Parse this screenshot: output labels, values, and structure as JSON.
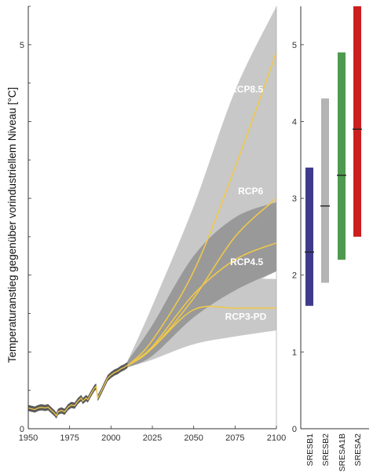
{
  "chart_data": {
    "type": "line",
    "ylabel": "Temperaturanstieg gegenüber vorindustriellem Niveau  [°C]",
    "xlim": [
      1950,
      2100
    ],
    "ylim": [
      0,
      5.5
    ],
    "x_ticks": [
      "1950",
      "1975",
      "2000",
      "2025",
      "2050",
      "2075",
      "2100"
    ],
    "y_ticks": [
      "0",
      "1",
      "2",
      "3",
      "4",
      "5"
    ],
    "grid": false,
    "colors": {
      "rcp_line": "#f0c84a",
      "band_light": "#c8c8c8",
      "band_dark": "#8a8a8a",
      "historical": "#5a5a5a",
      "SRESB1": "#3f3b8c",
      "SRESB2": "#b4b4b4",
      "SRESA1B": "#4e9a4e",
      "SRESA2": "#cc1f1f"
    },
    "historical": {
      "x": [
        1950,
        1952,
        1954,
        1956,
        1958,
        1960,
        1962,
        1964,
        1966,
        1967,
        1968,
        1970,
        1972,
        1974,
        1976,
        1978,
        1980,
        1982,
        1983,
        1985,
        1986,
        1988,
        1990,
        1991,
        1992,
        1994,
        1996,
        1998,
        2000,
        2002,
        2004,
        2006,
        2008,
        2010
      ],
      "y": [
        0.27,
        0.26,
        0.25,
        0.27,
        0.28,
        0.27,
        0.28,
        0.24,
        0.2,
        0.17,
        0.22,
        0.24,
        0.22,
        0.28,
        0.31,
        0.3,
        0.36,
        0.4,
        0.36,
        0.4,
        0.38,
        0.46,
        0.53,
        0.55,
        0.4,
        0.48,
        0.57,
        0.66,
        0.7,
        0.73,
        0.75,
        0.78,
        0.8,
        0.83
      ]
    },
    "series": [
      {
        "name": "RCP8.5",
        "x": [
          2010,
          2025,
          2050,
          2075,
          2100
        ],
        "values": [
          0.82,
          1.15,
          2.05,
          3.4,
          4.9
        ]
      },
      {
        "name": "RCP6",
        "x": [
          2010,
          2025,
          2050,
          2075,
          2100
        ],
        "values": [
          0.82,
          1.05,
          1.7,
          2.5,
          3.0
        ]
      },
      {
        "name": "RCP4.5",
        "x": [
          2010,
          2025,
          2050,
          2075,
          2100
        ],
        "values": [
          0.82,
          1.07,
          1.75,
          2.2,
          2.42
        ]
      },
      {
        "name": "RCP3-PD",
        "x": [
          2010,
          2025,
          2050,
          2075,
          2100
        ],
        "values": [
          0.82,
          1.05,
          1.55,
          1.57,
          1.57
        ]
      }
    ],
    "uncertainty_bands": [
      {
        "x": [
          2010,
          2025,
          2050,
          2075,
          2100
        ],
        "lower": [
          0.8,
          0.97,
          1.5,
          2.35,
          3.4
        ],
        "upper": [
          0.88,
          1.6,
          2.9,
          4.4,
          5.5
        ],
        "shade": "light"
      },
      {
        "x": [
          2010,
          2025,
          2050,
          2075,
          2100
        ],
        "lower": [
          0.8,
          0.93,
          1.3,
          1.75,
          2.05
        ],
        "upper": [
          0.88,
          1.5,
          2.5,
          3.25,
          3.6
        ],
        "shade": "light"
      },
      {
        "x": [
          2010,
          2025,
          2050,
          2075,
          2100
        ],
        "lower": [
          0.8,
          0.9,
          1.1,
          1.2,
          1.28
        ],
        "upper": [
          0.88,
          1.3,
          1.9,
          1.95,
          1.95
        ],
        "shade": "light"
      },
      {
        "x": [
          2010,
          2025,
          2050,
          2075,
          2100
        ],
        "lower": [
          0.8,
          0.95,
          1.45,
          1.8,
          2.05
        ],
        "upper": [
          0.88,
          1.35,
          2.25,
          2.75,
          2.95
        ],
        "shade": "dark"
      }
    ],
    "sres_bars": [
      {
        "name": "SRESB1",
        "low": 1.6,
        "high": 3.4,
        "median": 2.3
      },
      {
        "name": "SRESB2",
        "low": 1.9,
        "high": 4.3,
        "median": 2.9
      },
      {
        "name": "SRESA1B",
        "low": 2.2,
        "high": 4.9,
        "median": 3.3
      },
      {
        "name": "SRESA2",
        "low": 2.5,
        "high": 5.5,
        "median": 3.9
      }
    ]
  }
}
